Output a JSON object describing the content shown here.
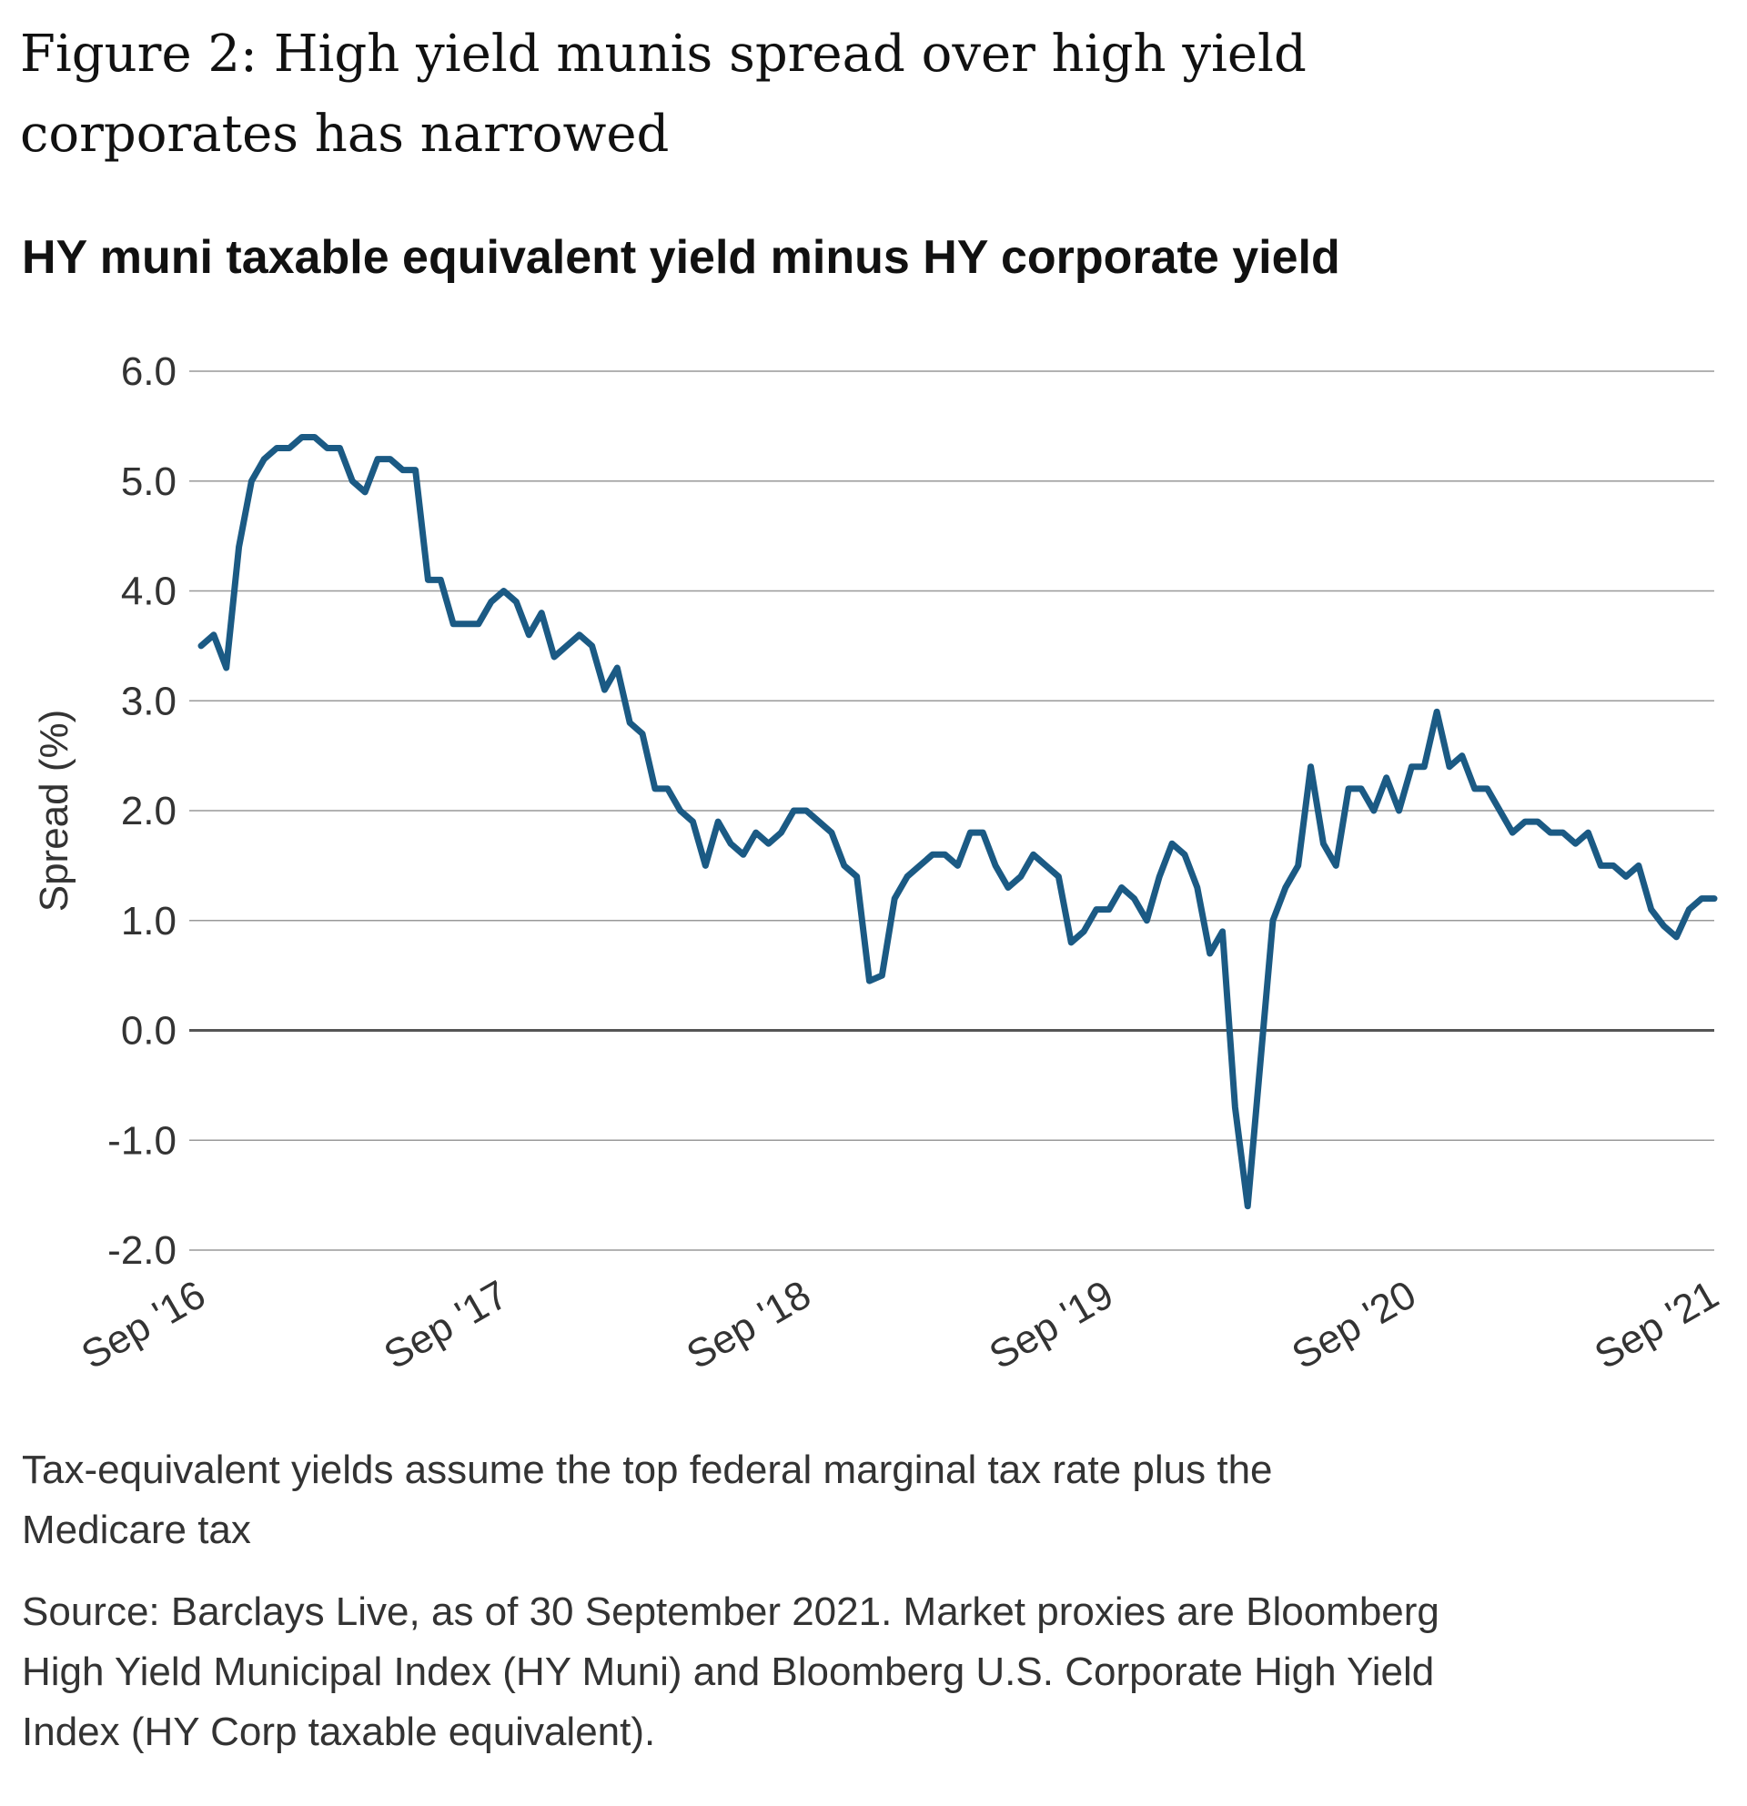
{
  "chart_data": {
    "type": "line",
    "title": [
      "Figure 2: High yield munis spread over high yield",
      "corporates has narrowed"
    ],
    "subtitle": "HY muni taxable equivalent yield minus HY corporate yield",
    "y_label": "Spread (%)",
    "categories": [
      "Sep '16",
      null,
      null,
      null,
      null,
      null,
      null,
      null,
      null,
      null,
      null,
      null,
      null,
      null,
      null,
      null,
      null,
      null,
      null,
      null,
      null,
      null,
      null,
      null,
      "Sep '17",
      null,
      null,
      null,
      null,
      null,
      null,
      null,
      null,
      null,
      null,
      null,
      null,
      null,
      null,
      null,
      null,
      null,
      null,
      null,
      null,
      null,
      null,
      null,
      "Sep '18",
      null,
      null,
      null,
      null,
      null,
      null,
      null,
      null,
      null,
      null,
      null,
      null,
      null,
      null,
      null,
      null,
      null,
      null,
      null,
      null,
      null,
      null,
      null,
      "Sep '19",
      null,
      null,
      null,
      null,
      null,
      null,
      null,
      null,
      null,
      null,
      null,
      null,
      null,
      null,
      null,
      null,
      null,
      null,
      null,
      null,
      null,
      null,
      null,
      "Sep '20",
      null,
      null,
      null,
      null,
      null,
      null,
      null,
      null,
      null,
      null,
      null,
      null,
      null,
      null,
      null,
      null,
      null,
      null,
      null,
      null,
      null,
      null,
      null,
      "Sep '21"
    ],
    "color": "#1b5a84",
    "values": [
      3.5,
      3.6,
      3.3,
      4.4,
      5.0,
      5.2,
      5.3,
      5.3,
      5.4,
      5.4,
      5.3,
      5.3,
      5.0,
      4.9,
      5.2,
      5.2,
      5.1,
      5.1,
      4.1,
      4.1,
      3.7,
      3.7,
      3.7,
      3.9,
      4.0,
      3.9,
      3.6,
      3.8,
      3.4,
      3.5,
      3.6,
      3.5,
      3.1,
      3.3,
      2.8,
      2.7,
      2.2,
      2.2,
      2.0,
      1.9,
      1.5,
      1.9,
      1.7,
      1.6,
      1.8,
      1.7,
      1.8,
      2.0,
      2.0,
      1.9,
      1.8,
      1.5,
      1.4,
      0.45,
      0.5,
      1.2,
      1.4,
      1.5,
      1.6,
      1.6,
      1.5,
      1.8,
      1.8,
      1.5,
      1.3,
      1.4,
      1.6,
      1.5,
      1.4,
      0.8,
      0.9,
      1.1,
      1.1,
      1.3,
      1.2,
      1.0,
      1.4,
      1.7,
      1.6,
      1.3,
      0.7,
      0.9,
      -0.7,
      -1.6,
      -0.3,
      1.0,
      1.3,
      1.5,
      2.4,
      1.7,
      1.5,
      2.2,
      2.2,
      2.0,
      2.3,
      2.0,
      2.4,
      2.4,
      2.9,
      2.4,
      2.5,
      2.2,
      2.2,
      2.0,
      1.8,
      1.9,
      1.9,
      1.8,
      1.8,
      1.7,
      1.8,
      1.5,
      1.5,
      1.4,
      1.5,
      1.1,
      0.95,
      0.85,
      1.1,
      1.2,
      1.2
    ],
    "ylim": [
      -2,
      6
    ],
    "yticks": [
      {
        "value": -2,
        "label": "-2.0"
      },
      {
        "value": -1,
        "label": "-1.0"
      },
      {
        "value": 0,
        "label": "0.0"
      },
      {
        "value": 1,
        "label": "1.0"
      },
      {
        "value": 2,
        "label": "2.0"
      },
      {
        "value": 3,
        "label": "3.0"
      },
      {
        "value": 4,
        "label": "4.0"
      },
      {
        "value": 5,
        "label": "5.0"
      },
      {
        "value": 6,
        "label": "6.0"
      }
    ],
    "grid": true,
    "notes": [
      "Tax-equivalent yields assume the top federal marginal tax rate plus the",
      "Medicare tax",
      "Source: Barclays Live, as of 30 September 2021. Market proxies are Bloomberg",
      "High Yield Municipal Index (HY Muni) and Bloomberg U.S. Corporate High Yield",
      "Index (HY Corp taxable equivalent)."
    ]
  }
}
